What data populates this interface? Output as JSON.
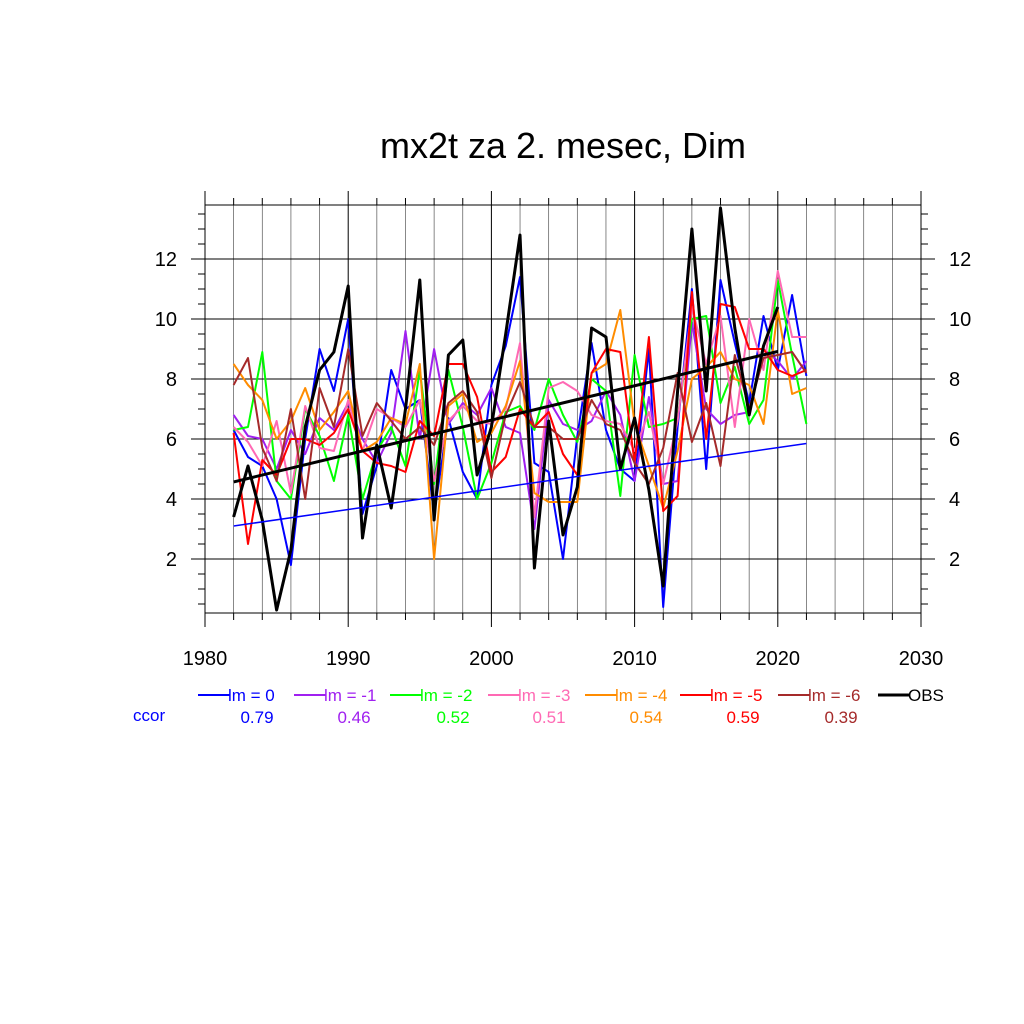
{
  "chart_data": {
    "type": "line",
    "title": "mx2t za 2. mesec, Dim",
    "xlabel": "",
    "ylabel": "",
    "xlim": [
      1980,
      2030
    ],
    "ylim": [
      0.2,
      13.8
    ],
    "xticks": [
      1980,
      1990,
      2000,
      2010,
      2020,
      2030
    ],
    "yticks": [
      2,
      4,
      6,
      8,
      10,
      12
    ],
    "grid": true,
    "legend_position": "bottom",
    "ccor_label": "ccor",
    "ccor_color": "#0000ff",
    "series": [
      {
        "name": "lm = 0",
        "color": "#0000ff",
        "ccor": "0.79",
        "x": [
          1982,
          1983,
          1984,
          1985,
          1986,
          1987,
          1988,
          1989,
          1990,
          1991,
          1992,
          1993,
          1994,
          1995,
          1996,
          1997,
          1998,
          1999,
          2000,
          2001,
          2002,
          2003,
          2004,
          2005,
          2006,
          2007,
          2008,
          2009,
          2010,
          2011,
          2012,
          2013,
          2014,
          2015,
          2016,
          2017,
          2018,
          2019,
          2020,
          2021,
          2022
        ],
        "y": [
          6.3,
          5.4,
          5.1,
          4.0,
          1.8,
          6.0,
          9.0,
          7.6,
          10.0,
          3.5,
          5.1,
          8.3,
          7.0,
          7.3,
          3.5,
          6.7,
          4.9,
          4.0,
          7.8,
          9.1,
          11.4,
          5.2,
          4.9,
          2.0,
          6.1,
          9.2,
          6.3,
          5.0,
          4.6,
          9.0,
          0.4,
          6.4,
          11.0,
          5.0,
          11.3,
          9.2,
          7.2,
          10.1,
          8.3,
          10.8,
          8.1
        ]
      },
      {
        "name": "lm = -1",
        "color": "#a020f0",
        "ccor": "0.46",
        "x": [
          1982,
          1983,
          1984,
          1985,
          1986,
          1987,
          1988,
          1989,
          1990,
          1991,
          1992,
          1993,
          1994,
          1995,
          1996,
          1997,
          1998,
          1999,
          2000,
          2001,
          2002,
          2003,
          2004,
          2005,
          2006,
          2007,
          2008,
          2009,
          2010,
          2011,
          2012,
          2013,
          2014,
          2015,
          2016,
          2017,
          2018,
          2019,
          2020,
          2021,
          2022
        ],
        "y": [
          6.8,
          6.1,
          6.0,
          5.0,
          6.3,
          5.5,
          6.7,
          6.3,
          7.2,
          6.0,
          5.2,
          6.2,
          9.6,
          6.0,
          9.0,
          6.5,
          7.2,
          6.8,
          7.7,
          6.4,
          6.2,
          3.0,
          7.3,
          6.5,
          6.3,
          6.6,
          7.6,
          6.8,
          4.6,
          7.4,
          4.5,
          4.6,
          9.9,
          7.0,
          6.5,
          6.8,
          6.9,
          9.0,
          8.6,
          8.0,
          8.6
        ]
      },
      {
        "name": "lm = -2",
        "color": "#00ff00",
        "ccor": "0.52",
        "x": [
          1982,
          1983,
          1984,
          1985,
          1986,
          1987,
          1988,
          1989,
          1990,
          1991,
          1992,
          1993,
          1994,
          1995,
          1996,
          1997,
          1998,
          1999,
          2000,
          2001,
          2002,
          2003,
          2004,
          2005,
          2006,
          2007,
          2008,
          2009,
          2010,
          2011,
          2012,
          2013,
          2014,
          2015,
          2016,
          2017,
          2018,
          2019,
          2020,
          2021,
          2022
        ],
        "y": [
          6.3,
          6.4,
          8.9,
          4.6,
          4.0,
          7.0,
          6.1,
          4.6,
          6.8,
          4.0,
          5.6,
          6.4,
          5.1,
          8.3,
          4.5,
          8.3,
          6.4,
          4.0,
          5.2,
          6.9,
          7.1,
          6.3,
          8.0,
          6.8,
          5.9,
          8.0,
          7.6,
          4.1,
          8.8,
          6.4,
          6.5,
          6.7,
          10.0,
          10.1,
          7.2,
          8.4,
          6.5,
          7.3,
          11.3,
          8.8,
          6.5
        ]
      },
      {
        "name": "lm = -3",
        "color": "#ff69b4",
        "ccor": "0.51",
        "x": [
          1982,
          1983,
          1984,
          1985,
          1986,
          1987,
          1988,
          1989,
          1990,
          1991,
          1992,
          1993,
          1994,
          1995,
          1996,
          1997,
          1998,
          1999,
          2000,
          2001,
          2002,
          2003,
          2004,
          2005,
          2006,
          2007,
          2008,
          2009,
          2010,
          2011,
          2012,
          2013,
          2014,
          2015,
          2016,
          2017,
          2018,
          2019,
          2020,
          2021,
          2022
        ],
        "y": [
          6.4,
          5.9,
          5.1,
          6.6,
          4.2,
          7.1,
          5.7,
          5.6,
          7.3,
          5.6,
          7.0,
          6.7,
          6.4,
          7.3,
          4.6,
          6.6,
          7.1,
          6.6,
          6.5,
          7.0,
          9.2,
          3.4,
          7.7,
          7.9,
          7.6,
          6.8,
          6.6,
          6.5,
          5.6,
          6.9,
          4.5,
          6.6,
          10.4,
          8.5,
          10.1,
          6.4,
          10.0,
          8.3,
          11.6,
          9.4,
          9.4
        ]
      },
      {
        "name": "lm = -4",
        "color": "#ff8c00",
        "ccor": "0.54",
        "x": [
          1982,
          1983,
          1984,
          1985,
          1986,
          1987,
          1988,
          1989,
          1990,
          1991,
          1992,
          1993,
          1994,
          1995,
          1996,
          1997,
          1998,
          1999,
          2000,
          2001,
          2002,
          2003,
          2004,
          2005,
          2006,
          2007,
          2008,
          2009,
          2010,
          2011,
          2012,
          2013,
          2014,
          2015,
          2016,
          2017,
          2018,
          2019,
          2020,
          2021,
          2022
        ],
        "y": [
          8.5,
          7.8,
          7.3,
          6.0,
          6.6,
          7.7,
          6.3,
          6.9,
          7.6,
          5.6,
          5.9,
          6.7,
          6.5,
          8.5,
          2.0,
          7.1,
          7.5,
          5.9,
          6.2,
          7.1,
          8.6,
          4.2,
          3.9,
          3.9,
          3.9,
          8.2,
          8.5,
          10.3,
          6.5,
          5.1,
          3.7,
          5.6,
          8.0,
          8.4,
          8.9,
          8.0,
          7.8,
          6.5,
          10.3,
          7.5,
          7.7
        ]
      },
      {
        "name": "lm = -5",
        "color": "#ff0000",
        "ccor": "0.59",
        "x": [
          1982,
          1983,
          1984,
          1985,
          1986,
          1987,
          1988,
          1989,
          1990,
          1991,
          1992,
          1993,
          1994,
          1995,
          1996,
          1997,
          1998,
          1999,
          2000,
          2001,
          2002,
          2003,
          2004,
          2005,
          2006,
          2007,
          2008,
          2009,
          2010,
          2011,
          2012,
          2013,
          2014,
          2015,
          2016,
          2017,
          2018,
          2019,
          2020,
          2021,
          2022
        ],
        "y": [
          6.2,
          2.5,
          5.3,
          4.8,
          6.0,
          6.0,
          5.8,
          6.2,
          7.0,
          5.6,
          5.2,
          5.1,
          4.9,
          6.6,
          6.1,
          8.5,
          8.5,
          7.4,
          4.9,
          5.4,
          7.0,
          6.4,
          6.9,
          5.5,
          4.8,
          8.2,
          9.0,
          8.9,
          5.2,
          9.4,
          3.6,
          4.1,
          10.9,
          6.0,
          10.5,
          10.4,
          9.0,
          9.0,
          8.3,
          8.1,
          8.3
        ]
      },
      {
        "name": "lm = -6",
        "color": "#a52a2a",
        "ccor": "0.39",
        "x": [
          1982,
          1983,
          1984,
          1985,
          1986,
          1987,
          1988,
          1989,
          1990,
          1991,
          1992,
          1993,
          1994,
          1995,
          1996,
          1997,
          1998,
          1999,
          2000,
          2001,
          2002,
          2003,
          2004,
          2005,
          2006,
          2007,
          2008,
          2009,
          2010,
          2011,
          2012,
          2013,
          2014,
          2015,
          2016,
          2017,
          2018,
          2019,
          2020,
          2021,
          2022
        ],
        "y": [
          7.8,
          8.7,
          5.7,
          4.6,
          7.0,
          4.0,
          7.7,
          6.4,
          9.0,
          6.1,
          7.2,
          6.6,
          6.0,
          6.4,
          5.8,
          7.2,
          7.6,
          6.9,
          4.7,
          6.8,
          7.9,
          6.4,
          6.4,
          6.0,
          6.0,
          7.3,
          6.5,
          6.3,
          5.2,
          4.5,
          5.7,
          8.2,
          5.9,
          7.2,
          5.1,
          8.8,
          7.0,
          8.7,
          8.8,
          8.9,
          8.2
        ]
      },
      {
        "name": "OBS",
        "color": "#000000",
        "ccor": "",
        "x": [
          1982,
          1983,
          1984,
          1985,
          1986,
          1987,
          1988,
          1989,
          1990,
          1991,
          1992,
          1993,
          1994,
          1995,
          1996,
          1997,
          1998,
          1999,
          2000,
          2001,
          2002,
          2003,
          2004,
          2005,
          2006,
          2007,
          2008,
          2009,
          2010,
          2011,
          2012,
          2013,
          2014,
          2015,
          2016,
          2017,
          2018,
          2019,
          2020
        ],
        "y": [
          3.4,
          5.1,
          3.3,
          0.3,
          2.3,
          6.4,
          8.3,
          8.9,
          11.1,
          2.7,
          5.8,
          3.7,
          7.0,
          11.3,
          3.3,
          8.8,
          9.3,
          4.8,
          6.4,
          9.5,
          12.8,
          1.7,
          6.6,
          2.8,
          4.4,
          9.7,
          9.4,
          5.0,
          6.7,
          4.3,
          1.1,
          7.6,
          13.0,
          7.6,
          13.7,
          9.7,
          6.8,
          9.1,
          10.4
        ]
      }
    ],
    "trend_lines": [
      {
        "name": "OBS trend",
        "color": "#000000",
        "x": [
          1982,
          2020
        ],
        "y": [
          4.57,
          8.92
        ]
      },
      {
        "name": "lm = 0 trend",
        "color": "#0000ff",
        "x": [
          1982,
          2022
        ],
        "y": [
          3.1,
          5.85
        ]
      }
    ]
  }
}
